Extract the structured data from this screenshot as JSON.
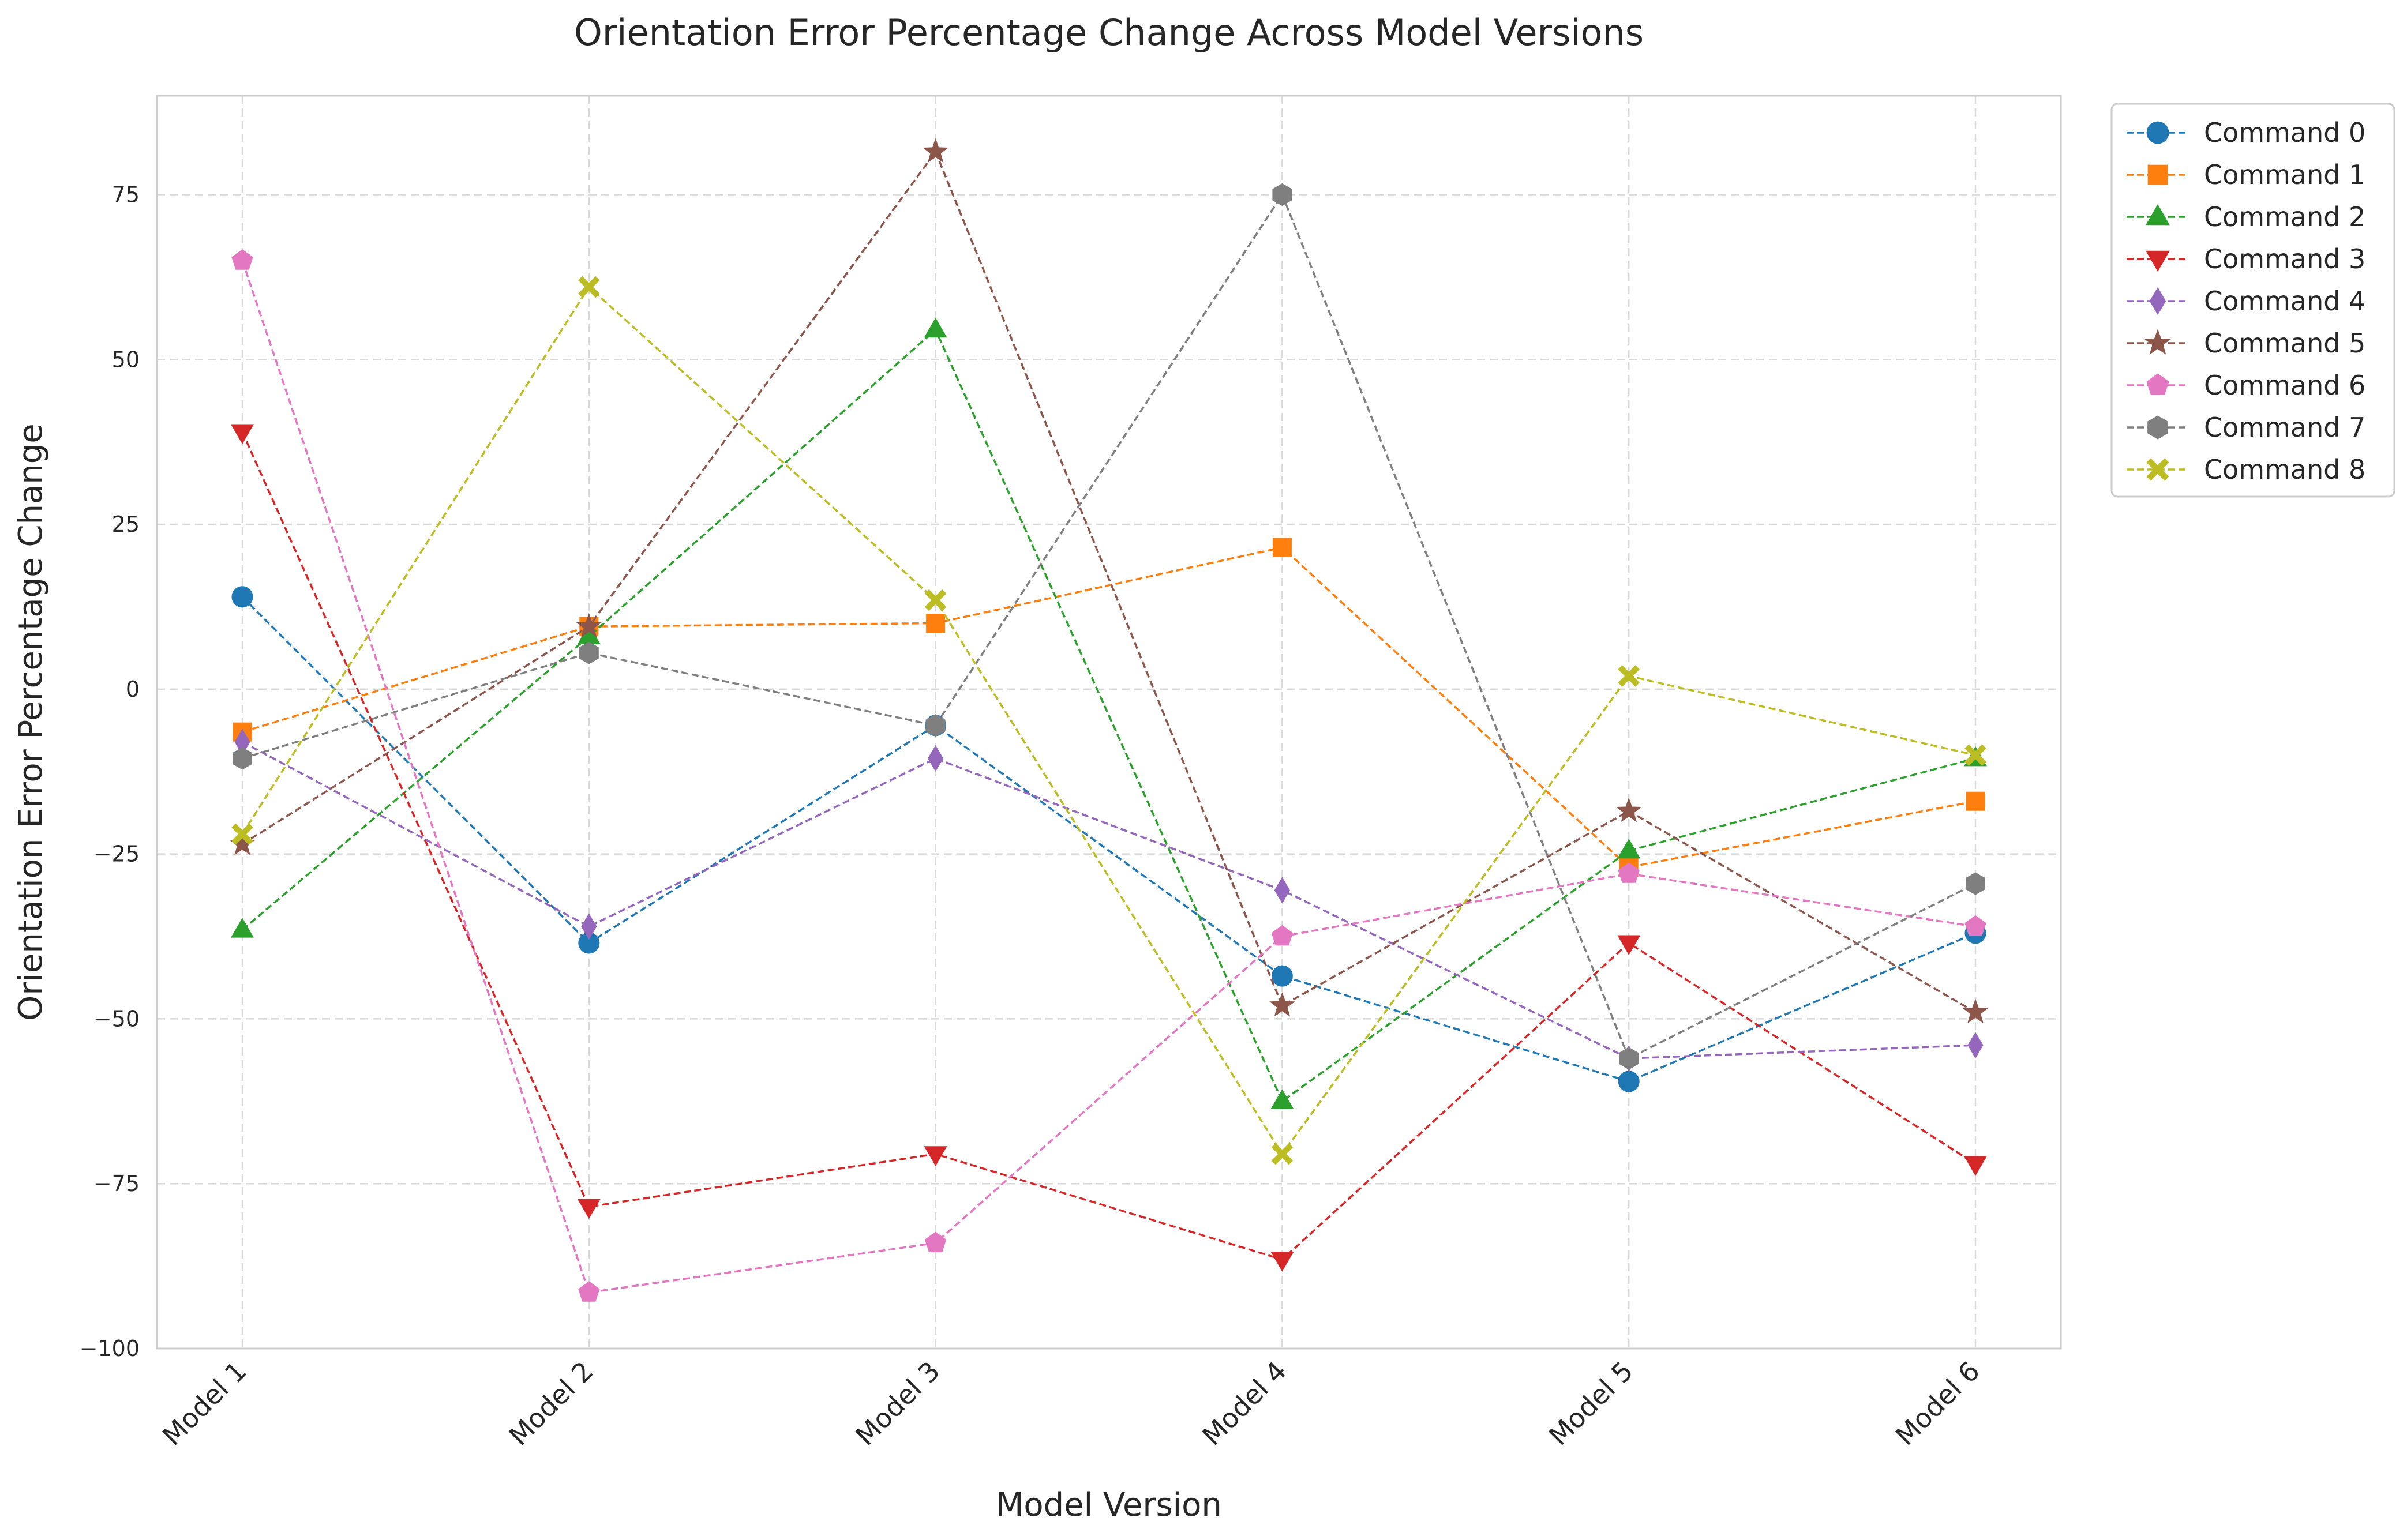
{
  "chart_data": {
    "type": "line",
    "title": "Orientation Error Percentage Change Across Model Versions",
    "xlabel": "Model Version",
    "ylabel": "Orientation Error Percentage Change",
    "categories": [
      "Model 1",
      "Model 2",
      "Model 3",
      "Model 4",
      "Model 5",
      "Model 6"
    ],
    "ylim": [
      -100,
      90
    ],
    "yticks": [
      -100,
      -75,
      -50,
      -25,
      0,
      25,
      50,
      75
    ],
    "ytick_labels": [
      "−100",
      "−75",
      "−50",
      "−25",
      "0",
      "25",
      "50",
      "75"
    ],
    "grid": true,
    "legend_position": "outside top-right",
    "series": [
      {
        "name": "Command 0",
        "color": "#1f77b4",
        "marker": "circle",
        "values": [
          14,
          -38.5,
          -5.5,
          -43.5,
          -59.5,
          -37
        ]
      },
      {
        "name": "Command 1",
        "color": "#ff7f0e",
        "marker": "square",
        "values": [
          -6.5,
          9.5,
          10,
          21.5,
          -27,
          -17
        ]
      },
      {
        "name": "Command 2",
        "color": "#2ca02c",
        "marker": "triangle-up",
        "values": [
          -36.5,
          8,
          54.5,
          -62.5,
          -24.5,
          -10.5
        ]
      },
      {
        "name": "Command 3",
        "color": "#d62728",
        "marker": "triangle-down",
        "values": [
          39,
          -78.5,
          -70.5,
          -86.5,
          -38.5,
          -72
        ]
      },
      {
        "name": "Command 4",
        "color": "#9467bd",
        "marker": "thin-diamond",
        "values": [
          -8,
          -36,
          -10.5,
          -30.5,
          -56,
          -54
        ]
      },
      {
        "name": "Command 5",
        "color": "#8c564b",
        "marker": "star",
        "values": [
          -23.5,
          9.5,
          81.5,
          -48,
          -18.5,
          -49
        ]
      },
      {
        "name": "Command 6",
        "color": "#e377c2",
        "marker": "pentagon",
        "values": [
          65,
          -91.5,
          -84,
          -37.5,
          -28,
          -36
        ]
      },
      {
        "name": "Command 7",
        "color": "#7f7f7f",
        "marker": "hexagon",
        "values": [
          -10.5,
          5.5,
          -5.5,
          75,
          -56,
          -29.5
        ]
      },
      {
        "name": "Command 8",
        "color": "#bcbd22",
        "marker": "x-filled",
        "values": [
          -22,
          61,
          13.5,
          -70.5,
          2,
          -10
        ]
      }
    ]
  }
}
